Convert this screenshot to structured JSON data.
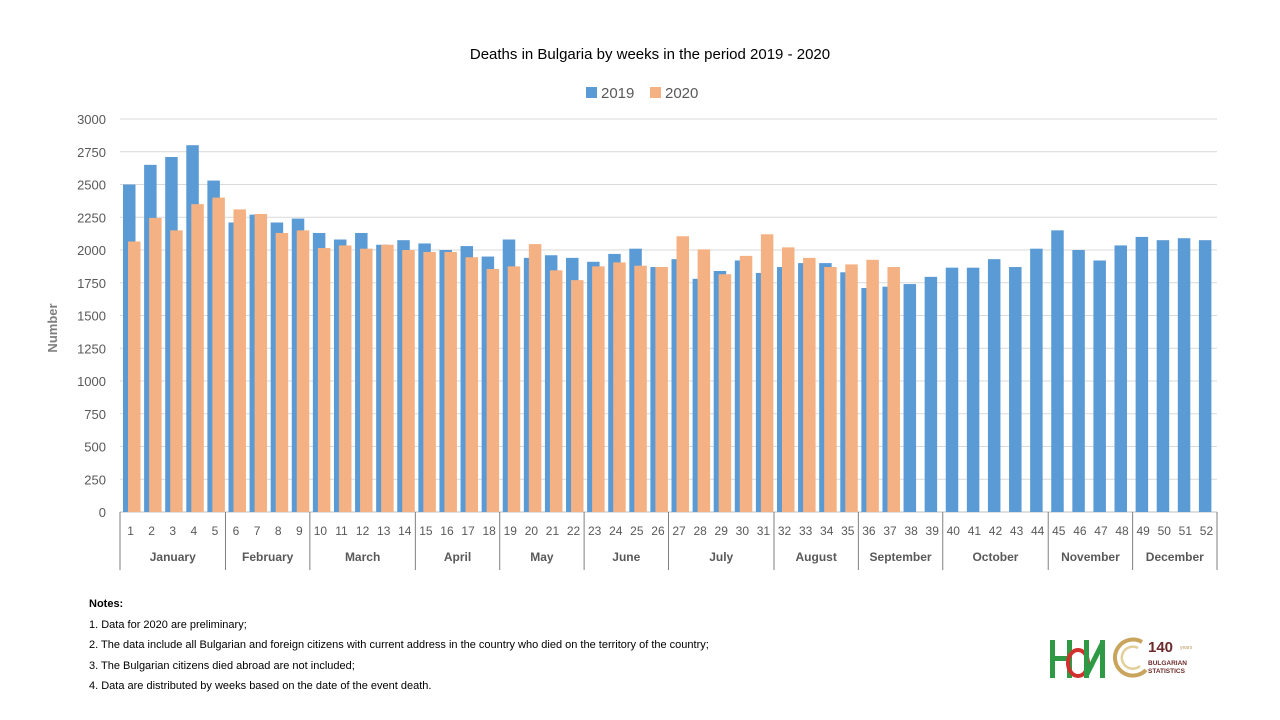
{
  "chart_data": {
    "type": "bar",
    "title": "Deaths in Bulgaria by weeks in the period 2019 - 2020",
    "ylabel": "Number",
    "xlabel": "",
    "ylim": [
      0,
      3000
    ],
    "yticks": [
      "0",
      "250",
      "500",
      "750",
      "1000",
      "1250",
      "1500",
      "1750",
      "2000",
      "2250",
      "2500",
      "2750",
      "3000"
    ],
    "grid": true,
    "legend_position": "top-center",
    "categories": [
      "1",
      "2",
      "3",
      "4",
      "5",
      "6",
      "7",
      "8",
      "9",
      "10",
      "11",
      "12",
      "13",
      "14",
      "15",
      "16",
      "17",
      "18",
      "19",
      "20",
      "21",
      "22",
      "23",
      "24",
      "25",
      "26",
      "27",
      "28",
      "29",
      "30",
      "31",
      "32",
      "33",
      "34",
      "35",
      "36",
      "37",
      "38",
      "39",
      "40",
      "41",
      "42",
      "43",
      "44",
      "45",
      "46",
      "47",
      "48",
      "49",
      "50",
      "51",
      "52"
    ],
    "months": [
      {
        "name": "January",
        "weeks": 5
      },
      {
        "name": "February",
        "weeks": 4
      },
      {
        "name": "March",
        "weeks": 5
      },
      {
        "name": "April",
        "weeks": 4
      },
      {
        "name": "May",
        "weeks": 4
      },
      {
        "name": "June",
        "weeks": 4
      },
      {
        "name": "July",
        "weeks": 5
      },
      {
        "name": "August",
        "weeks": 4
      },
      {
        "name": "September",
        "weeks": 4
      },
      {
        "name": "October",
        "weeks": 5
      },
      {
        "name": "November",
        "weeks": 4
      },
      {
        "name": "December",
        "weeks": 4
      }
    ],
    "series": [
      {
        "name": "2019",
        "color": "#5b9bd5",
        "values": [
          2500,
          2650,
          2710,
          2800,
          2530,
          2210,
          2270,
          2210,
          2240,
          2130,
          2080,
          2130,
          2040,
          2075,
          2050,
          2000,
          2030,
          1950,
          2080,
          1940,
          1960,
          1940,
          1910,
          1970,
          2010,
          1870,
          1930,
          1780,
          1840,
          1920,
          1825,
          1870,
          1900,
          1900,
          1830,
          1710,
          1720,
          1740,
          1795,
          1865,
          1865,
          1930,
          1870,
          2010,
          2150,
          2000,
          1920,
          2035,
          2100,
          2075,
          2090,
          2075
        ]
      },
      {
        "name": "2020",
        "color": "#f4b183",
        "values": [
          2065,
          2245,
          2150,
          2350,
          2400,
          2310,
          2275,
          2130,
          2150,
          2015,
          2035,
          2010,
          2040,
          2000,
          1985,
          1985,
          1945,
          1855,
          1875,
          2045,
          1845,
          1770,
          1875,
          1905,
          1880,
          1870,
          2105,
          2005,
          1815,
          1955,
          2120,
          2020,
          1940,
          1870,
          1890,
          1925,
          1870,
          null,
          null,
          null,
          null,
          null,
          null,
          null,
          null,
          null,
          null,
          null,
          null,
          null,
          null,
          null
        ]
      }
    ]
  },
  "notes": {
    "title": "Notes:",
    "lines": [
      "1. Data for 2020 are preliminary;",
      "2. The data include all Bulgarian and foreign citizens with current address in the country who died on the territory of the country;",
      "3. The Bulgarian citizens died abroad are not included;",
      "4. Data are distributed by weeks  based on the date of the event death."
    ]
  },
  "logo": {
    "nsi_icon": "nsi-logo-icon",
    "anniversary_number": "140",
    "anniversary_small": "years",
    "anniversary_line1": "BULGARIAN",
    "anniversary_line2": "STATISTICS",
    "colors": {
      "green": "#2e9a45",
      "red": "#d0312d",
      "gold": "#c9a45c",
      "maroon": "#6d2a2a"
    }
  }
}
